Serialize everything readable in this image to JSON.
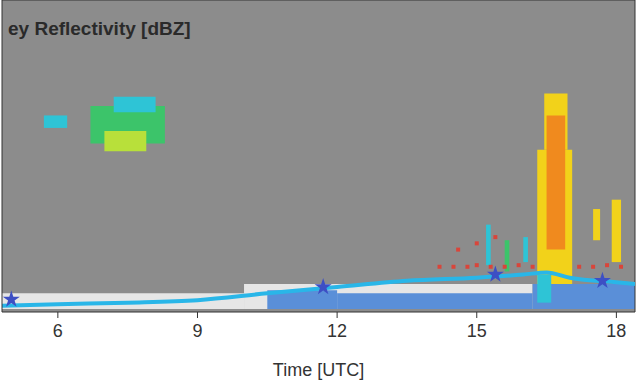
{
  "chart_data": {
    "type": "heatmap",
    "title": "ey Reflectivity [dBZ]",
    "x_label": "Time [UTC]",
    "xlim": [
      4.8,
      18.4
    ],
    "xticks": [
      6,
      9,
      12,
      15,
      18
    ],
    "ylim": [
      0,
      10
    ],
    "tick_labels": "x",
    "grid": false,
    "colorbar_range": [
      -45,
      18
    ],
    "cells": [
      {
        "x0": 4.8,
        "x1": 10,
        "y0": 0.1,
        "y1": 0.6,
        "value": -45
      },
      {
        "x0": 10,
        "x1": 16.2,
        "y0": 0.1,
        "y1": 0.9,
        "value": -42
      },
      {
        "x0": 10.5,
        "x1": 12,
        "y0": 0.1,
        "y1": 0.7,
        "value": -30
      },
      {
        "x0": 12,
        "x1": 16.2,
        "y0": 0.1,
        "y1": 0.6,
        "value": -30
      },
      {
        "x0": 16.2,
        "x1": 18.4,
        "y0": 0.1,
        "y1": 0.9,
        "value": -32
      },
      {
        "x0": 5.7,
        "x1": 6.2,
        "y0": 5.9,
        "y1": 6.3,
        "value": -25
      },
      {
        "x0": 6.7,
        "x1": 8.3,
        "y0": 5.4,
        "y1": 6.6,
        "value": -15
      },
      {
        "x0": 7.2,
        "x1": 8.1,
        "y0": 6.4,
        "y1": 6.9,
        "value": -22
      },
      {
        "x0": 7.0,
        "x1": 7.9,
        "y0": 5.15,
        "y1": 5.8,
        "value": -3
      },
      {
        "x0": 16.3,
        "x1": 17.05,
        "y0": 0.9,
        "y1": 5.2,
        "value": 3
      },
      {
        "x0": 16.45,
        "x1": 16.95,
        "y0": 5.2,
        "y1": 7.0,
        "value": 2
      },
      {
        "x0": 16.5,
        "x1": 16.9,
        "y0": 2.0,
        "y1": 6.3,
        "value": 10
      },
      {
        "x0": 16.3,
        "x1": 16.6,
        "y0": 0.3,
        "y1": 1.2,
        "value": -20
      },
      {
        "x0": 17.5,
        "x1": 17.65,
        "y0": 2.3,
        "y1": 3.3,
        "value": 2
      },
      {
        "x0": 17.9,
        "x1": 18.1,
        "y0": 1.6,
        "y1": 3.6,
        "value": 4
      },
      {
        "x0": 15.2,
        "x1": 15.3,
        "y0": 1.5,
        "y1": 2.8,
        "value": -20
      },
      {
        "x0": 15.6,
        "x1": 15.7,
        "y0": 1.3,
        "y1": 2.3,
        "value": -12
      },
      {
        "x0": 16.0,
        "x1": 16.1,
        "y0": 1.6,
        "y1": 2.4,
        "value": -25
      }
    ],
    "series": [
      {
        "type": "line",
        "color": "#29b6e8",
        "x": [
          4.8,
          6,
          7.5,
          9,
          10.5,
          12,
          13.5,
          15,
          16,
          16.5,
          17,
          18,
          18.4
        ],
        "values": [
          0.2,
          0.25,
          0.3,
          0.38,
          0.6,
          0.8,
          1.0,
          1.1,
          1.2,
          1.27,
          1.1,
          0.95,
          0.9
        ]
      },
      {
        "type": "scatter",
        "marker": "square",
        "color": "#d9453a",
        "x": [
          14.2,
          14.5,
          14.8,
          15.0,
          15.3,
          15.6,
          15.9,
          16.2,
          17.2,
          17.5,
          17.8,
          18.1,
          15.0,
          15.4,
          14.6
        ],
        "values": [
          1.45,
          1.45,
          1.45,
          1.5,
          1.45,
          1.45,
          1.5,
          1.45,
          1.45,
          1.45,
          1.5,
          1.45,
          2.2,
          2.4,
          2.0
        ]
      },
      {
        "type": "scatter",
        "marker": "star",
        "color": "#3d4fc4",
        "x": [
          5.0,
          11.7,
          15.4,
          17.7
        ],
        "values": [
          0.4,
          0.8,
          1.2,
          1.0
        ]
      }
    ]
  }
}
